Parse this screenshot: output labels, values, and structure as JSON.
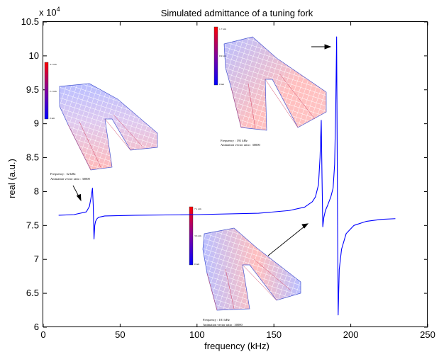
{
  "chart_data": {
    "type": "line",
    "title": "Simulated admittance of a tuning fork",
    "xlabel": "frequency (kHz)",
    "ylabel": "real (a.u.)",
    "y_multiplier": "x 10",
    "y_multiplier_exp": "4",
    "xlim": [
      0,
      250
    ],
    "ylim": [
      6.0,
      10.5
    ],
    "xticks": [
      0,
      50,
      100,
      150,
      200,
      250
    ],
    "yticks": [
      6,
      6.5,
      7,
      7.5,
      8,
      8.5,
      9,
      9.5,
      10,
      10.5
    ],
    "xtick_labels": [
      "0",
      "50",
      "100",
      "150",
      "200",
      "250"
    ],
    "ytick_labels": [
      "6",
      "6.5",
      "7",
      "7.5",
      "8",
      "8.5",
      "9",
      "9.5",
      "10",
      "10.5"
    ],
    "line_color": "#0000ff",
    "series": [
      {
        "x": [
          10,
          20,
          28,
          30,
          31,
          32,
          32.5,
          33,
          33.5,
          34,
          35,
          36,
          40,
          60,
          100,
          140,
          160,
          170,
          175,
          177,
          179,
          180,
          180.8,
          181.3,
          181.8,
          182.5,
          183.5,
          185,
          187,
          188.5,
          189.5,
          190.2,
          190.8,
          191.3,
          191.8,
          192.5,
          194,
          197,
          202,
          210,
          220,
          229
        ],
        "y": [
          7.65,
          7.66,
          7.7,
          7.78,
          7.9,
          8.05,
          7.8,
          7.3,
          7.5,
          7.56,
          7.6,
          7.62,
          7.64,
          7.65,
          7.66,
          7.68,
          7.72,
          7.77,
          7.85,
          7.92,
          8.1,
          8.5,
          9.05,
          8.2,
          7.48,
          7.62,
          7.72,
          7.8,
          7.92,
          8.05,
          8.4,
          9.2,
          10.28,
          8.0,
          6.18,
          6.85,
          7.15,
          7.38,
          7.5,
          7.56,
          7.59,
          7.6
        ]
      }
    ],
    "annotations": [
      {
        "id": "mode1",
        "lines": [
          "Frequency : 32 kHz",
          "Animation vector ratio : 30000"
        ]
      },
      {
        "id": "mode2",
        "lines": [
          "Frequency : 181 kHz",
          "Animation vector ratio : 30000"
        ]
      },
      {
        "id": "mode3",
        "lines": [
          "Frequency : 191 kHz",
          "Animation vector ratio : 30000"
        ]
      }
    ],
    "colorbars": [
      {
        "id": "cb1",
        "top": "4.1 nm",
        "mid": "2.1 nm",
        "bottom": "0 nm"
      },
      {
        "id": "cb2",
        "top": "7.1 nm",
        "mid": "3.6 nm",
        "bottom": "0 nm"
      },
      {
        "id": "cb3",
        "top": "1.7 nm",
        "mid": "0.9 nm",
        "bottom": "0 nm"
      }
    ],
    "grid": false,
    "legend": "none"
  }
}
